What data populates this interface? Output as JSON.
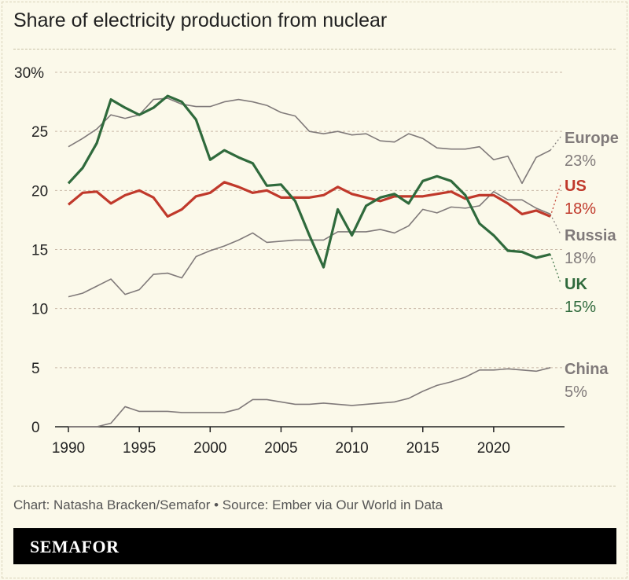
{
  "chart_data": {
    "type": "line",
    "title": "Share of electricity production from nuclear",
    "xlabel": "",
    "ylabel": "",
    "xlim": [
      1990,
      2024
    ],
    "ylim": [
      0,
      30
    ],
    "x_ticks": [
      "1990",
      "1995",
      "2000",
      "2005",
      "2010",
      "2015",
      "2020"
    ],
    "y_ticks": [
      "0",
      "5",
      "10",
      "15",
      "20",
      "25",
      "30%"
    ],
    "grid": "horizontal dashed",
    "x": [
      1990,
      1991,
      1992,
      1993,
      1994,
      1995,
      1996,
      1997,
      1998,
      1999,
      2000,
      2001,
      2002,
      2003,
      2004,
      2005,
      2006,
      2007,
      2008,
      2009,
      2010,
      2011,
      2012,
      2013,
      2014,
      2015,
      2016,
      2017,
      2018,
      2019,
      2020,
      2021,
      2022,
      2023,
      2024
    ],
    "series": [
      {
        "name": "Europe",
        "end_label": "23%",
        "color": "#807a7a",
        "width": 1.6,
        "values": [
          23.7,
          24.4,
          25.2,
          26.4,
          26.1,
          26.4,
          27.7,
          27.8,
          27.3,
          27.1,
          27.1,
          27.5,
          27.7,
          27.5,
          27.2,
          26.6,
          26.3,
          25.0,
          24.8,
          25.0,
          24.7,
          24.8,
          24.2,
          24.1,
          24.8,
          24.4,
          23.6,
          23.5,
          23.5,
          23.7,
          22.6,
          22.9,
          20.6,
          22.8,
          23.4
        ]
      },
      {
        "name": "Russia",
        "end_label": "18%",
        "color": "#807a7a",
        "width": 1.6,
        "values": [
          11.0,
          11.3,
          11.9,
          12.5,
          11.2,
          11.6,
          12.9,
          13.0,
          12.6,
          14.4,
          14.9,
          15.3,
          15.8,
          16.4,
          15.6,
          15.7,
          15.8,
          15.8,
          15.8,
          16.5,
          16.5,
          16.5,
          16.7,
          16.4,
          17.0,
          18.4,
          18.1,
          18.6,
          18.5,
          18.7,
          19.9,
          19.2,
          19.2,
          18.5,
          18.0
        ]
      },
      {
        "name": "China",
        "end_label": "5%",
        "color": "#807a7a",
        "width": 1.6,
        "values": [
          0,
          0,
          0,
          0.3,
          1.7,
          1.3,
          1.3,
          1.3,
          1.2,
          1.2,
          1.2,
          1.2,
          1.5,
          2.3,
          2.3,
          2.1,
          1.9,
          1.9,
          2.0,
          1.9,
          1.8,
          1.9,
          2.0,
          2.1,
          2.4,
          3.0,
          3.5,
          3.8,
          4.2,
          4.8,
          4.8,
          4.9,
          4.8,
          4.7,
          5.0
        ]
      },
      {
        "name": "US",
        "end_label": "18%",
        "color": "#c0392b",
        "width": 3.2,
        "values": [
          18.8,
          19.8,
          19.9,
          18.9,
          19.6,
          20.0,
          19.4,
          17.8,
          18.4,
          19.5,
          19.8,
          20.7,
          20.3,
          19.8,
          20.0,
          19.4,
          19.4,
          19.4,
          19.6,
          20.3,
          19.7,
          19.4,
          19.1,
          19.5,
          19.5,
          19.5,
          19.7,
          19.9,
          19.3,
          19.6,
          19.6,
          18.9,
          18.0,
          18.3,
          17.8
        ]
      },
      {
        "name": "UK",
        "end_label": "15%",
        "color": "#2f6a3c",
        "width": 3.2,
        "values": [
          20.6,
          21.9,
          24.0,
          27.7,
          27.0,
          26.4,
          27.0,
          28.0,
          27.5,
          26.0,
          22.6,
          23.4,
          22.8,
          22.3,
          20.4,
          20.5,
          19.1,
          16.2,
          13.5,
          18.4,
          16.2,
          18.7,
          19.4,
          19.7,
          18.9,
          20.8,
          21.2,
          20.8,
          19.6,
          17.2,
          16.2,
          14.9,
          14.8,
          14.3,
          14.6
        ]
      }
    ]
  },
  "footer": {
    "credit": "Chart: Natasha Bracken/Semafor • Source: Ember via Our World in Data",
    "brand": "SEMAFOR"
  }
}
